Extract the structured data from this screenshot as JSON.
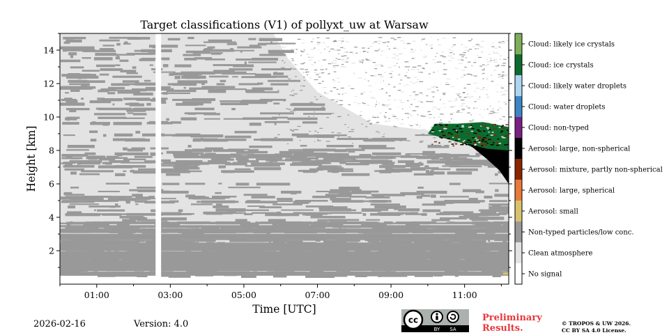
{
  "chart_data": {
    "type": "heatmap",
    "title": "Target classifications (V1) of pollyxt_uw at Warsaw",
    "xlabel": "Time [UTC]",
    "ylabel": "Height [km]",
    "x_unit": "hours UTC",
    "xlim": [
      0,
      12.2
    ],
    "ylim": [
      0.0,
      15.0
    ],
    "x_ticks": [
      {
        "value": 1,
        "label": "01:00"
      },
      {
        "value": 3,
        "label": "03:00"
      },
      {
        "value": 5,
        "label": "05:00"
      },
      {
        "value": 7,
        "label": "07:00"
      },
      {
        "value": 9,
        "label": "09:00"
      },
      {
        "value": 11,
        "label": "11:00"
      }
    ],
    "y_ticks": [
      {
        "value": 2,
        "label": "2"
      },
      {
        "value": 4,
        "label": "4"
      },
      {
        "value": 6,
        "label": "6"
      },
      {
        "value": 8,
        "label": "8"
      },
      {
        "value": 10,
        "label": "10"
      },
      {
        "value": 12,
        "label": "12"
      },
      {
        "value": 14,
        "label": "14"
      }
    ],
    "data_gap": {
      "start": 2.6,
      "end": 2.75
    },
    "regions": [
      {
        "class": "Clean atmosphere",
        "x": [
          0,
          12.2
        ],
        "y": [
          0.5,
          15.0
        ],
        "note": "background above ~0.5 km"
      },
      {
        "class": "Non-typed particles/low conc.",
        "x": [
          0,
          12.2
        ],
        "y": [
          0.5,
          3.8
        ],
        "note": "dense boundary layer band"
      },
      {
        "class": "Non-typed particles/low conc.",
        "x": [
          0,
          5.8
        ],
        "y": [
          3.8,
          15.0
        ],
        "note": "scattered layers"
      },
      {
        "class": "Clean atmosphere",
        "x": [
          6.0,
          12.2
        ],
        "y": [
          9.0,
          15.0
        ],
        "note": "mostly no signal / white above ~9 km after 06:00"
      },
      {
        "class": "Cloud: ice crystals",
        "x": [
          10.0,
          12.2
        ],
        "y": [
          6.2,
          9.6
        ],
        "note": "cloud entering from 10:00, descending"
      },
      {
        "class": "Aerosol: large, non-spherical",
        "x": [
          11.2,
          12.2
        ],
        "y": [
          6.0,
          8.5
        ],
        "note": "below cloud base"
      }
    ],
    "colorbar": [
      {
        "label": "Cloud: likely ice crystals",
        "color": "#7fae5a"
      },
      {
        "label": "Cloud: ice crystals",
        "color": "#0e6b2f"
      },
      {
        "label": "Cloud: likely water droplets",
        "color": "#aed6f1"
      },
      {
        "label": "Cloud: water droplets",
        "color": "#3d85c6"
      },
      {
        "label": "Cloud: non-typed",
        "color": "#7b1f83"
      },
      {
        "label": "Aerosol: large, non-spherical",
        "color": "#000000"
      },
      {
        "label": "Aerosol: mixture, partly non-spherical",
        "color": "#8b2500"
      },
      {
        "label": "Aerosol: large, spherical",
        "color": "#e87a3a"
      },
      {
        "label": "Aerosol: small",
        "color": "#d9c26e"
      },
      {
        "label": "Non-typed particles/low conc.",
        "color": "#999999"
      },
      {
        "label": "Clean atmosphere",
        "color": "#e3e3e3"
      },
      {
        "label": "No signal",
        "color": "#ffffff"
      }
    ]
  },
  "footer": {
    "date": "2026-02-16",
    "version": "Version: 4.0",
    "preliminary_line1": "Preliminary",
    "preliminary_line2": "Results.",
    "copyright_line1": "© TROPOS & UW 2026.",
    "copyright_line2": "CC BY SA 4.0 License.",
    "license_badge_text": [
      "BY",
      "SA"
    ]
  }
}
